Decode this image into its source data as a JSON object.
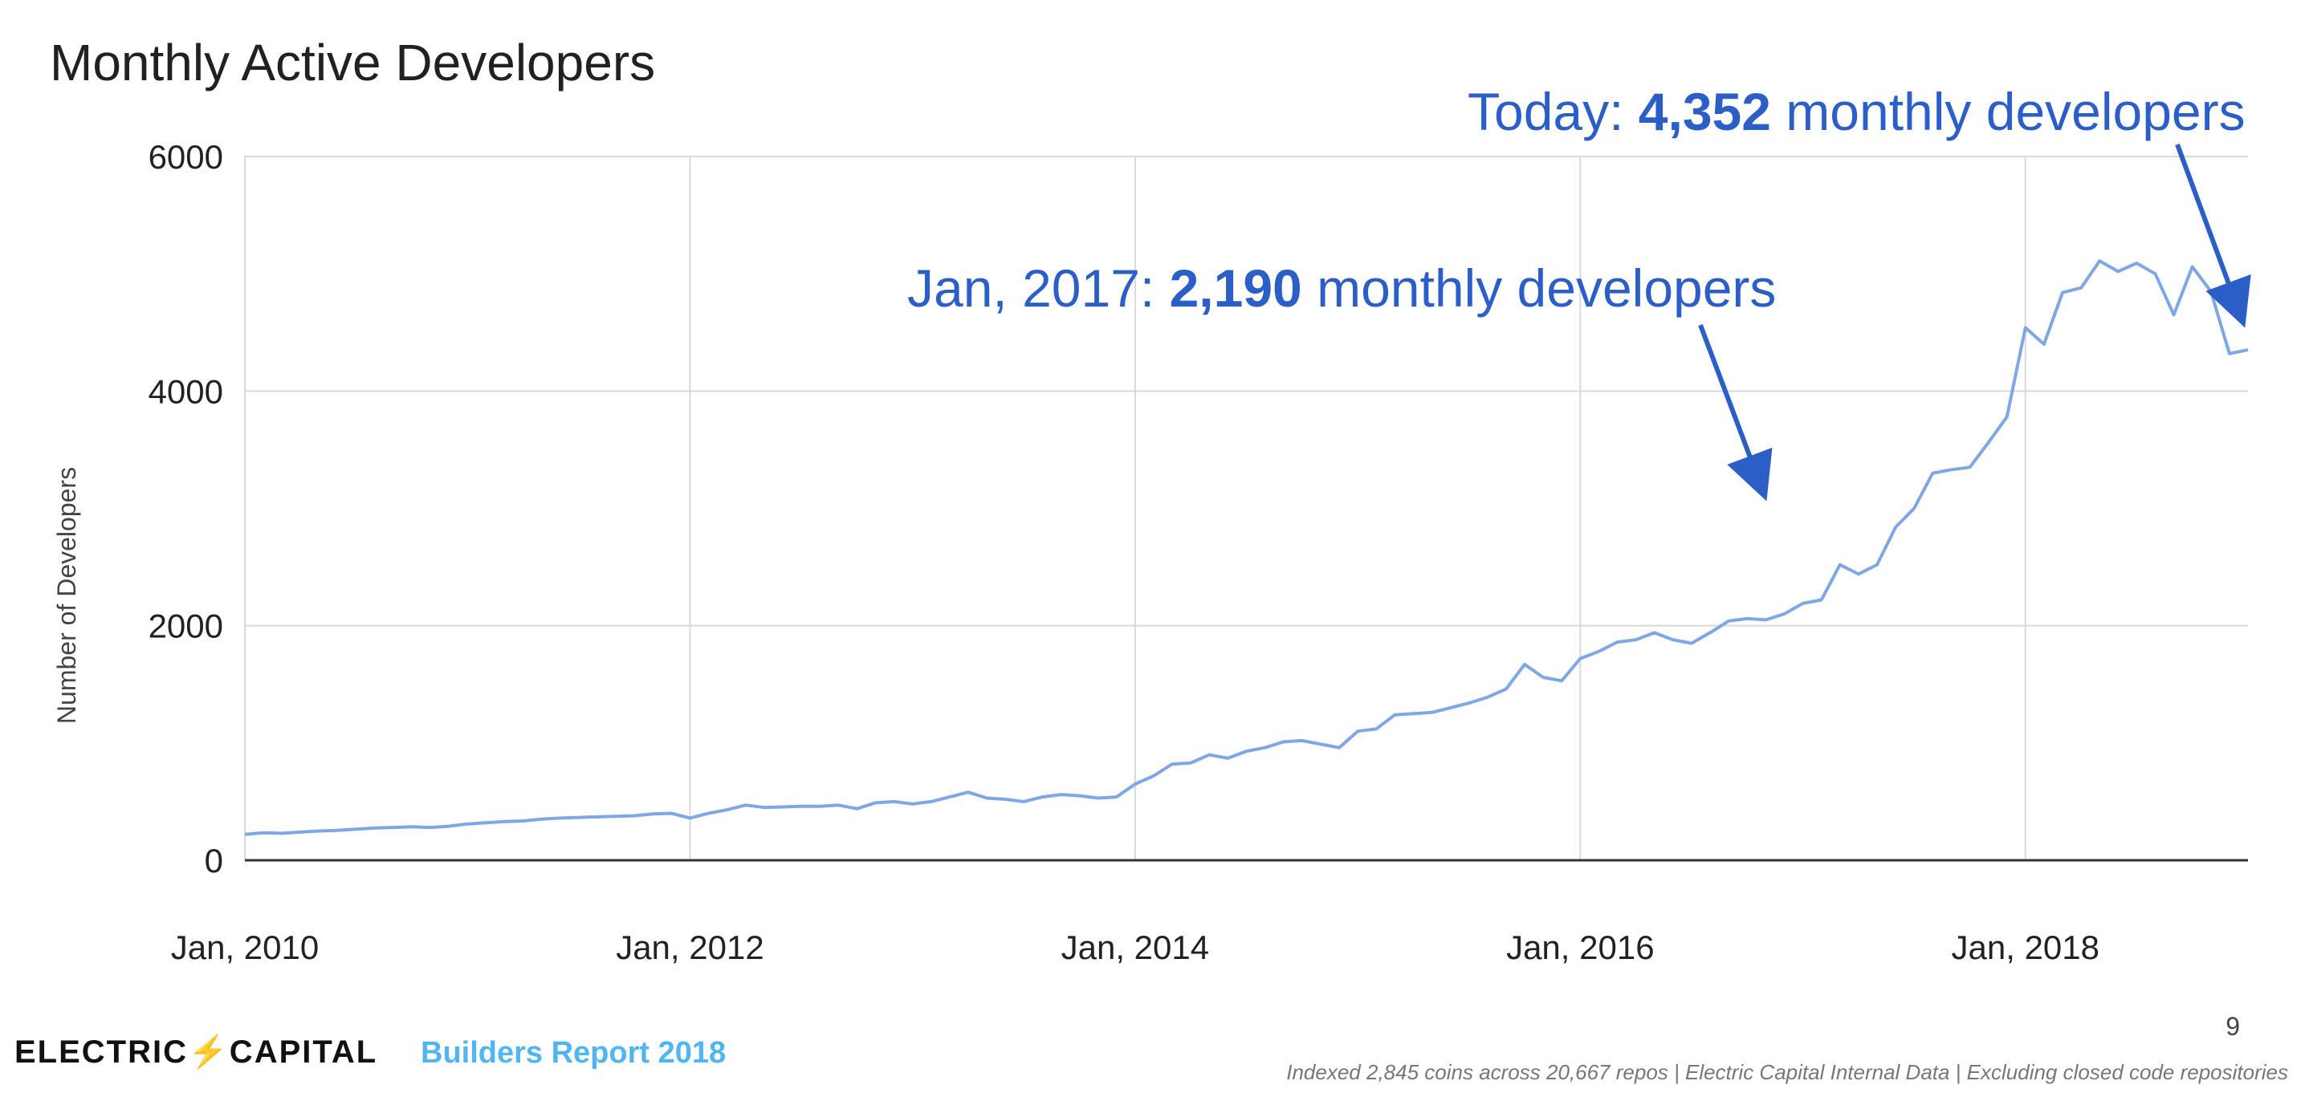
{
  "chart_data": {
    "type": "line",
    "title": "Monthly Active Developers",
    "xlabel": "",
    "ylabel": "Number of Developers",
    "ylim": [
      0,
      6000
    ],
    "yticks": [
      0,
      2000,
      4000,
      6000
    ],
    "x_start": "2010-01",
    "x_end": "2019-01",
    "x_tick_labels": [
      "Jan, 2010",
      "Jan, 2012",
      "Jan, 2014",
      "Jan, 2016",
      "Jan, 2018"
    ],
    "x_tick_months": [
      "2010-01",
      "2012-01",
      "2014-01",
      "2016-01",
      "2018-01"
    ],
    "grid": true,
    "series": [
      {
        "name": "",
        "color": "#7ea7e6",
        "x": [
          "2010-01",
          "2010-02",
          "2010-03",
          "2010-04",
          "2010-05",
          "2010-06",
          "2010-07",
          "2010-08",
          "2010-09",
          "2010-10",
          "2010-11",
          "2010-12",
          "2011-01",
          "2011-02",
          "2011-03",
          "2011-04",
          "2011-05",
          "2011-06",
          "2011-07",
          "2011-08",
          "2011-09",
          "2011-10",
          "2011-11",
          "2011-12",
          "2012-01",
          "2012-02",
          "2012-03",
          "2012-04",
          "2012-05",
          "2012-06",
          "2012-07",
          "2012-08",
          "2012-09",
          "2012-10",
          "2012-11",
          "2012-12",
          "2013-01",
          "2013-02",
          "2013-03",
          "2013-04",
          "2013-05",
          "2013-06",
          "2013-07",
          "2013-08",
          "2013-09",
          "2013-10",
          "2013-11",
          "2013-12",
          "2014-01",
          "2014-02",
          "2014-03",
          "2014-04",
          "2014-05",
          "2014-06",
          "2014-07",
          "2014-08",
          "2014-09",
          "2014-10",
          "2014-11",
          "2014-12",
          "2015-01",
          "2015-02",
          "2015-03",
          "2015-04",
          "2015-05",
          "2015-06",
          "2015-07",
          "2015-08",
          "2015-09",
          "2015-10",
          "2015-11",
          "2015-12",
          "2016-01",
          "2016-02",
          "2016-03",
          "2016-04",
          "2016-05",
          "2016-06",
          "2016-07",
          "2016-08",
          "2016-09",
          "2016-10",
          "2016-11",
          "2016-12",
          "2017-01",
          "2017-02",
          "2017-03",
          "2017-04",
          "2017-05",
          "2017-06",
          "2017-07",
          "2017-08",
          "2017-09",
          "2017-10",
          "2017-11",
          "2017-12",
          "2018-01",
          "2018-02",
          "2018-03",
          "2018-04",
          "2018-05",
          "2018-06",
          "2018-07",
          "2018-08",
          "2018-09",
          "2018-10",
          "2018-11",
          "2018-12",
          "2019-01"
        ],
        "values": [
          220,
          235,
          230,
          240,
          250,
          255,
          265,
          275,
          280,
          285,
          280,
          290,
          310,
          320,
          330,
          335,
          350,
          360,
          365,
          370,
          375,
          380,
          395,
          400,
          360,
          400,
          430,
          470,
          450,
          455,
          460,
          460,
          470,
          440,
          490,
          500,
          480,
          500,
          540,
          580,
          530,
          520,
          500,
          540,
          560,
          550,
          530,
          540,
          650,
          720,
          820,
          830,
          900,
          870,
          930,
          960,
          1010,
          1020,
          990,
          960,
          1100,
          1120,
          1240,
          1250,
          1260,
          1300,
          1340,
          1390,
          1460,
          1670,
          1560,
          1530,
          1720,
          1780,
          1860,
          1880,
          1940,
          1880,
          1850,
          1940,
          2040,
          2060,
          2050,
          2100,
          2190,
          2220,
          2520,
          2440,
          2520,
          2840,
          3000,
          3300,
          3330,
          3350,
          3560,
          3780,
          4540,
          4400,
          4840,
          4880,
          5110,
          5020,
          5090,
          5000,
          4650,
          5060,
          4850,
          4320,
          4352
        ]
      }
    ],
    "annotations": [
      {
        "prefix": "Jan, 2017: ",
        "value": "2,190",
        "suffix": " monthly developers"
      },
      {
        "prefix": "Today: ",
        "value": "4,352",
        "suffix": " monthly developers"
      }
    ]
  },
  "footer": {
    "brand": "ELECTRIC⚡CAPITAL",
    "report": "Builders Report 2018",
    "page_number": "9",
    "footnote": "Indexed 2,845 coins across 20,667 repos | Electric Capital Internal Data | Excluding closed code repositories"
  }
}
